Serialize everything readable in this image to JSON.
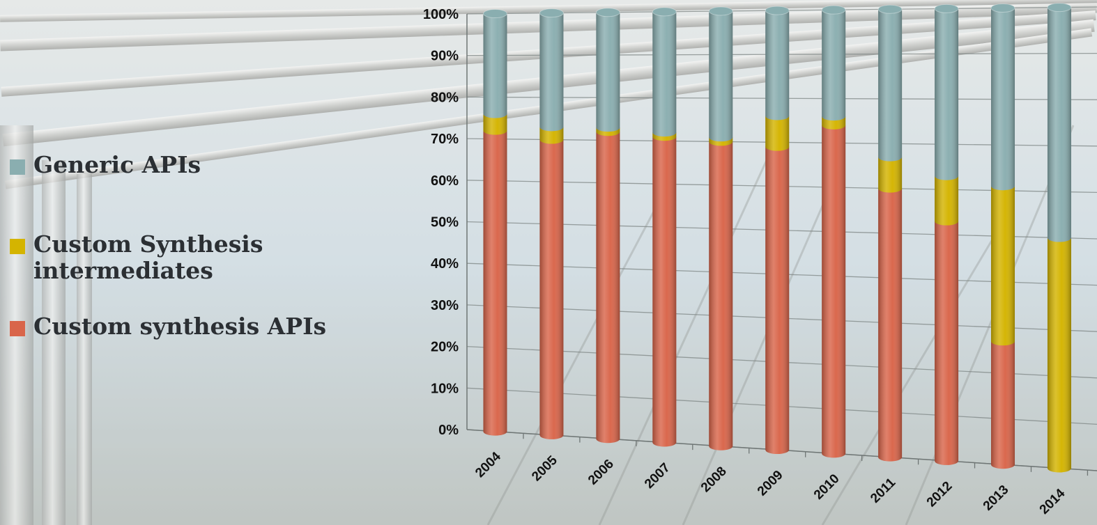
{
  "legend": {
    "items": [
      {
        "label": "Generic APIs",
        "color": "#8aaeb0"
      },
      {
        "label": "Custom Synthesis intermediates",
        "color": "#d4b400"
      },
      {
        "label": "Custom synthesis APIs",
        "color": "#d9654a"
      }
    ]
  },
  "chart_data": {
    "type": "bar",
    "stacked": true,
    "percent": true,
    "style": "3d-cylinder",
    "categories": [
      "2004",
      "2005",
      "2006",
      "2007",
      "2008",
      "2009",
      "2010",
      "2011",
      "2012",
      "2013",
      "2014"
    ],
    "series": [
      {
        "name": "Custom synthesis APIs",
        "color": "#d9654a",
        "values": [
          72,
          70,
          72,
          71,
          70,
          69,
          74,
          60,
          53,
          27,
          0
        ]
      },
      {
        "name": "Custom Synthesis intermediates",
        "color": "#d4b400",
        "values": [
          4,
          3,
          1,
          1,
          1,
          7,
          2,
          7,
          10,
          34,
          50
        ]
      },
      {
        "name": "Generic APIs",
        "color": "#8aaeb0",
        "values": [
          24,
          27,
          27,
          28,
          29,
          24,
          24,
          33,
          37,
          39,
          50
        ]
      }
    ],
    "y_ticks": [
      "0%",
      "10%",
      "20%",
      "30%",
      "40%",
      "50%",
      "60%",
      "70%",
      "80%",
      "90%",
      "100%"
    ],
    "ylim": [
      0,
      100
    ],
    "grid": true,
    "legend_position": "left"
  }
}
